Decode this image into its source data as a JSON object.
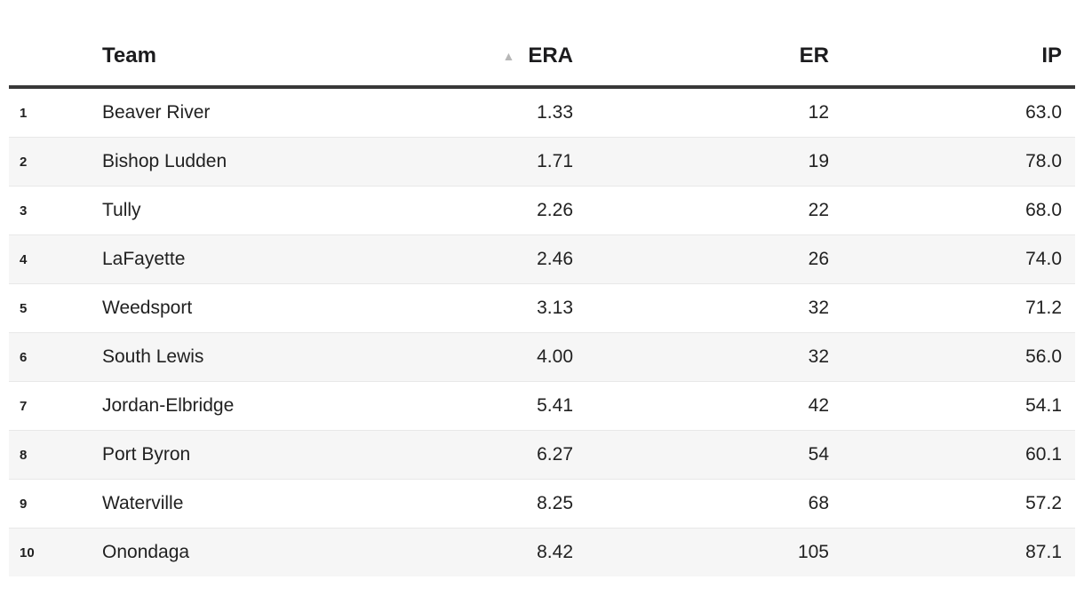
{
  "table": {
    "columns": {
      "rank": "",
      "team": "Team",
      "era": "ERA",
      "er": "ER",
      "ip": "IP"
    },
    "sort": {
      "column": "ERA",
      "direction": "ascending",
      "icon": "sort-ascending-triangle"
    },
    "rows": [
      {
        "rank": "1",
        "team": "Beaver River",
        "era": "1.33",
        "er": "12",
        "ip": "63.0"
      },
      {
        "rank": "2",
        "team": "Bishop Ludden",
        "era": "1.71",
        "er": "19",
        "ip": "78.0"
      },
      {
        "rank": "3",
        "team": "Tully",
        "era": "2.26",
        "er": "22",
        "ip": "68.0"
      },
      {
        "rank": "4",
        "team": "LaFayette",
        "era": "2.46",
        "er": "26",
        "ip": "74.0"
      },
      {
        "rank": "5",
        "team": "Weedsport",
        "era": "3.13",
        "er": "32",
        "ip": "71.2"
      },
      {
        "rank": "6",
        "team": "South Lewis",
        "era": "4.00",
        "er": "32",
        "ip": "56.0"
      },
      {
        "rank": "7",
        "team": "Jordan-Elbridge",
        "era": "5.41",
        "er": "42",
        "ip": "54.1"
      },
      {
        "rank": "8",
        "team": "Port Byron",
        "era": "6.27",
        "er": "54",
        "ip": "60.1"
      },
      {
        "rank": "9",
        "team": "Waterville",
        "era": "8.25",
        "er": "68",
        "ip": "57.2"
      },
      {
        "rank": "10",
        "team": "Onondaga",
        "era": "8.42",
        "er": "105",
        "ip": "87.1"
      }
    ],
    "sort_icon_glyph": "▲",
    "colors": {
      "stripe": "#f6f6f6",
      "header_border": "#383838",
      "row_border": "#e8e8e8",
      "sort_icon": "#b7b7b7",
      "text": "#212121"
    }
  }
}
